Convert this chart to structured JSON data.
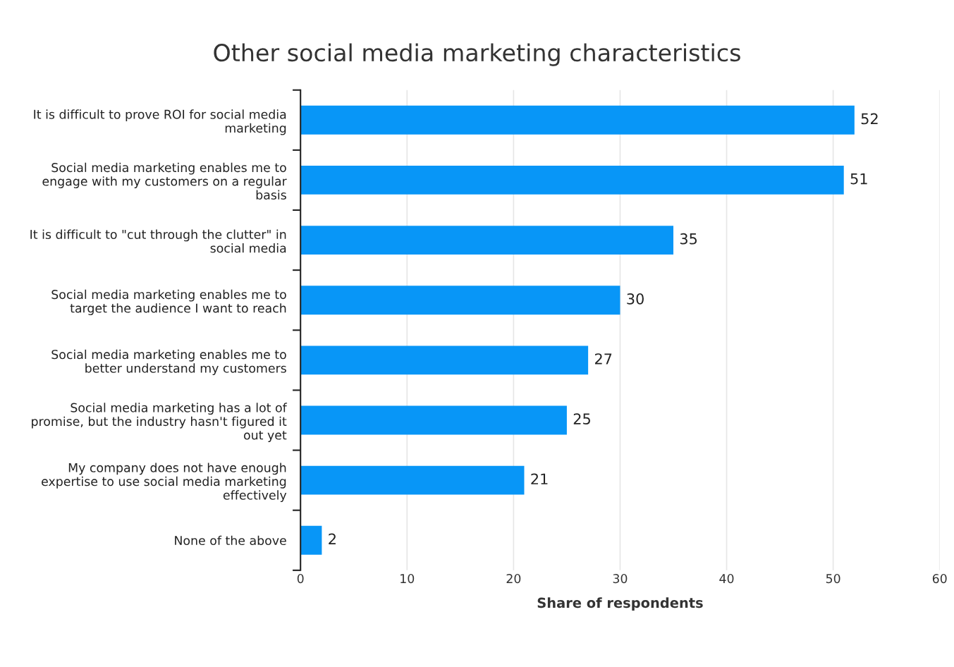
{
  "chart_data": {
    "type": "bar",
    "orientation": "horizontal",
    "title": "Other social media marketing characteristics",
    "xlabel": "Share of respondents",
    "categories": [
      "It is difficult to prove ROI for social media\nmarketing",
      "Social media marketing enables me to\nengage with my customers on a regular\nbasis",
      "It is difficult to \"cut through the clutter\" in\nsocial media",
      "Social media marketing enables me to\ntarget the audience I want to reach",
      "Social media marketing enables me to\nbetter understand my customers",
      "Social media marketing has a lot of\npromise, but the industry hasn't figured it\nout yet",
      "My company does not have enough\nexpertise to use social media marketing\neffectively",
      "None of the above"
    ],
    "values": [
      52,
      51,
      35,
      30,
      27,
      25,
      21,
      2
    ],
    "color": "#0896f7",
    "xlim": [
      0,
      60
    ],
    "xticks": [
      0,
      10,
      20,
      30,
      40,
      50,
      60
    ],
    "grid": "x",
    "data_labels": true
  }
}
